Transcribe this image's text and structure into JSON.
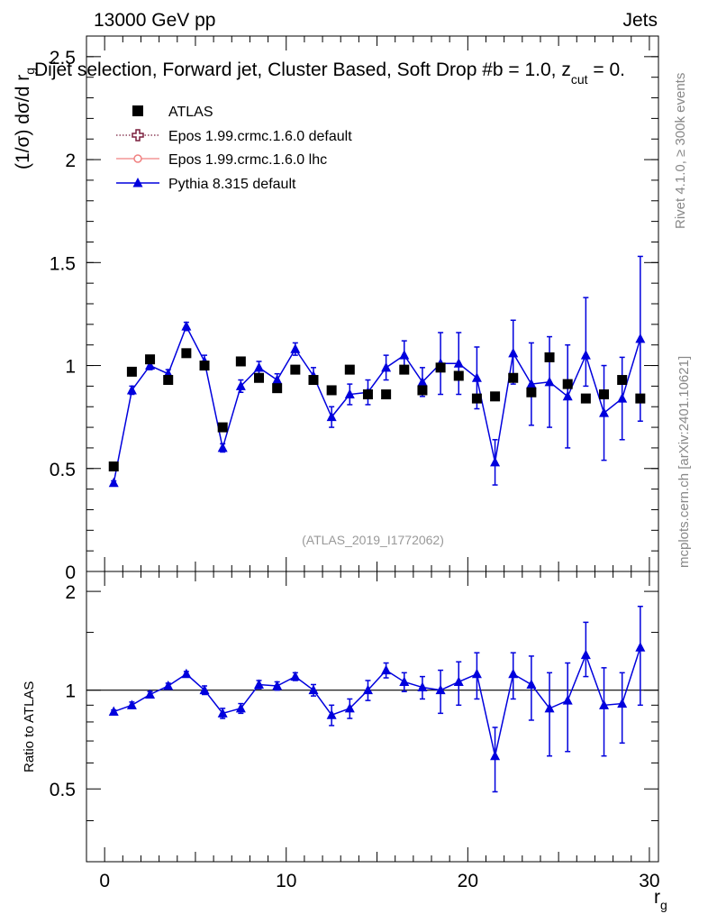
{
  "header": {
    "energy_label": "13000 GeV pp",
    "channel_label": "Jets",
    "selection_label": "Dijet selection, Forward jet, Cluster Based, Soft Drop #b = 1.0, z",
    "selection_sub": "cut",
    "selection_tail": " = 0.",
    "side_label_rivet": "Rivet 4.1.0, ≥ 300k events",
    "side_label_mcplots": "mcplots.cern.ch [arXiv:2401.10621]",
    "analysis_id": "(ATLAS_2019_I1772062)"
  },
  "legend": [
    {
      "key": "atlas",
      "label": "ATLAS",
      "color": "#000000",
      "marker": "square"
    },
    {
      "key": "epos_default",
      "label": "Epos 1.99.crmc.1.6.0 default",
      "color": "#7a1f3d",
      "marker": "open-cross"
    },
    {
      "key": "epos_lhc",
      "label": "Epos 1.99.crmc.1.6.0 lhc",
      "color": "#f08080",
      "marker": "open-circle"
    },
    {
      "key": "pythia",
      "label": "Pythia 8.315 default",
      "color": "#0000dd",
      "marker": "triangle"
    }
  ],
  "chart_data": [
    {
      "type": "scatter",
      "name": "main",
      "ylabel": "(1/σ) dσ/d r",
      "ylabel_sub": "g",
      "xlim": [
        -1,
        30.5
      ],
      "ylim": [
        0,
        2.6
      ],
      "yticks": [
        0,
        0.5,
        1,
        1.5,
        2,
        2.5
      ],
      "ytick_labels": [
        "0",
        "0.5",
        "1",
        "1.5",
        "2",
        "2.5"
      ],
      "x": [
        0.5,
        1.5,
        2.5,
        3.5,
        4.5,
        5.5,
        6.5,
        7.5,
        8.5,
        9.5,
        10.5,
        11.5,
        12.5,
        13.5,
        14.5,
        15.5,
        16.5,
        17.5,
        18.5,
        19.5,
        20.5,
        21.5,
        22.5,
        23.5,
        24.5,
        25.5,
        26.5,
        27.5,
        28.5,
        29.5
      ],
      "series": [
        {
          "name": "ATLAS",
          "style": "data",
          "values": [
            0.51,
            0.97,
            1.03,
            0.93,
            1.06,
            1.0,
            0.7,
            1.02,
            0.94,
            0.89,
            0.98,
            0.93,
            0.88,
            0.98,
            0.86,
            0.86,
            0.98,
            0.88,
            0.99,
            0.95,
            0.84,
            0.85,
            0.94,
            0.87,
            1.04,
            0.91,
            0.84,
            0.86,
            0.93,
            0.84
          ]
        },
        {
          "name": "Pythia 8.315 default",
          "style": "pythia",
          "values": [
            0.43,
            0.88,
            1.0,
            0.96,
            1.19,
            1.02,
            0.6,
            0.9,
            0.99,
            0.93,
            1.08,
            0.95,
            0.75,
            0.86,
            0.87,
            0.99,
            1.05,
            0.92,
            1.01,
            1.01,
            0.94,
            0.53,
            1.06,
            0.91,
            0.92,
            0.85,
            1.05,
            0.77,
            0.84,
            1.13
          ],
          "err_low": [
            0.01,
            0.02,
            0.02,
            0.02,
            0.02,
            0.03,
            0.02,
            0.03,
            0.03,
            0.03,
            0.03,
            0.04,
            0.05,
            0.05,
            0.06,
            0.06,
            0.07,
            0.07,
            0.15,
            0.15,
            0.15,
            0.11,
            0.15,
            0.2,
            0.22,
            0.25,
            0.15,
            0.23,
            0.2,
            0.4
          ],
          "err_high": [
            0.01,
            0.02,
            0.02,
            0.02,
            0.02,
            0.03,
            0.02,
            0.03,
            0.03,
            0.03,
            0.03,
            0.04,
            0.05,
            0.05,
            0.06,
            0.06,
            0.07,
            0.07,
            0.15,
            0.15,
            0.15,
            0.11,
            0.16,
            0.2,
            0.22,
            0.25,
            0.28,
            0.23,
            0.2,
            0.4
          ]
        }
      ]
    },
    {
      "type": "scatter",
      "name": "ratio",
      "xlabel": "r",
      "xlabel_sub": "g",
      "ylabel": "Ratio to ATLAS",
      "xlim": [
        -1,
        30.5
      ],
      "ylim": [
        0.3,
        2.3
      ],
      "xticks": [
        0,
        10,
        20,
        30
      ],
      "xtick_labels": [
        "0",
        "10",
        "20",
        "30"
      ],
      "yticks": [
        0.5,
        1,
        2
      ],
      "ytick_labels": [
        "0.5",
        "1",
        "2"
      ],
      "reference_line": 1,
      "x": [
        0.5,
        1.5,
        2.5,
        3.5,
        4.5,
        5.5,
        6.5,
        7.5,
        8.5,
        9.5,
        10.5,
        11.5,
        12.5,
        13.5,
        14.5,
        15.5,
        16.5,
        17.5,
        18.5,
        19.5,
        20.5,
        21.5,
        22.5,
        23.5,
        24.5,
        25.5,
        26.5,
        27.5,
        28.5,
        29.5
      ],
      "series": [
        {
          "name": "Pythia 8.315 default / ATLAS",
          "style": "pythia",
          "values": [
            0.86,
            0.9,
            0.97,
            1.03,
            1.12,
            1.0,
            0.85,
            0.88,
            1.04,
            1.03,
            1.1,
            1.0,
            0.84,
            0.88,
            1.0,
            1.15,
            1.06,
            1.02,
            1.0,
            1.06,
            1.12,
            0.63,
            1.12,
            1.04,
            0.88,
            0.93,
            1.28,
            0.9,
            0.91,
            1.35
          ],
          "err_low": [
            0.01,
            0.02,
            0.02,
            0.02,
            0.02,
            0.03,
            0.03,
            0.03,
            0.03,
            0.03,
            0.03,
            0.04,
            0.06,
            0.06,
            0.07,
            0.06,
            0.07,
            0.08,
            0.15,
            0.16,
            0.18,
            0.14,
            0.18,
            0.23,
            0.25,
            0.28,
            0.18,
            0.27,
            0.22,
            0.45
          ],
          "err_high": [
            0.01,
            0.02,
            0.02,
            0.02,
            0.02,
            0.03,
            0.03,
            0.03,
            0.03,
            0.03,
            0.03,
            0.04,
            0.06,
            0.06,
            0.07,
            0.06,
            0.07,
            0.08,
            0.15,
            0.16,
            0.18,
            0.14,
            0.18,
            0.23,
            0.25,
            0.28,
            0.33,
            0.27,
            0.22,
            0.45
          ]
        }
      ]
    }
  ]
}
